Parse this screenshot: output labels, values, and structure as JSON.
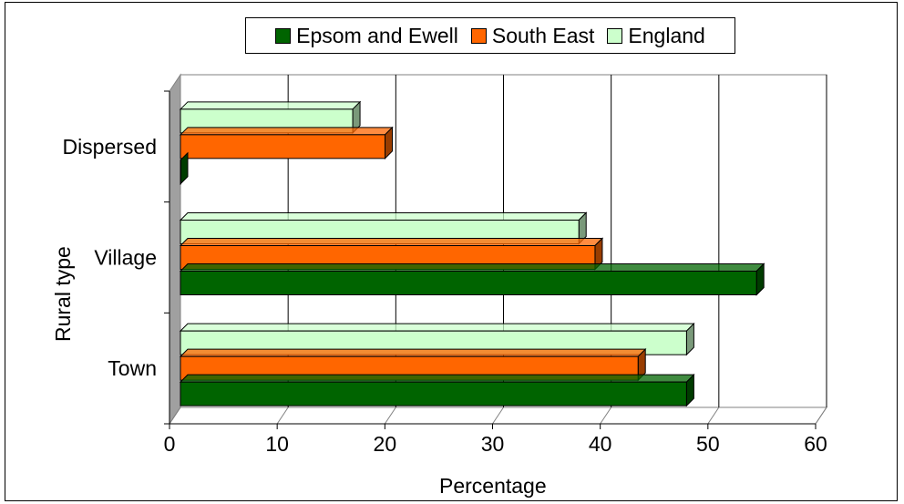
{
  "chart_data": {
    "type": "bar",
    "orientation": "horizontal",
    "categories": [
      "Dispersed",
      "Village",
      "Town"
    ],
    "series": [
      {
        "name": "Epsom and Ewell",
        "color": "#006400",
        "values": [
          0,
          53.5,
          47
        ]
      },
      {
        "name": "South East",
        "color": "#ff6600",
        "values": [
          19,
          38.5,
          42.5
        ]
      },
      {
        "name": "England",
        "color": "#ccffcc",
        "values": [
          16,
          37,
          47
        ]
      }
    ],
    "xlabel": "Percentage",
    "ylabel": "Rural type",
    "xlim": [
      0,
      60
    ],
    "xticks": [
      "0",
      "10",
      "20",
      "30",
      "40",
      "50",
      "60"
    ],
    "grid": "vertical",
    "legend": "top"
  }
}
